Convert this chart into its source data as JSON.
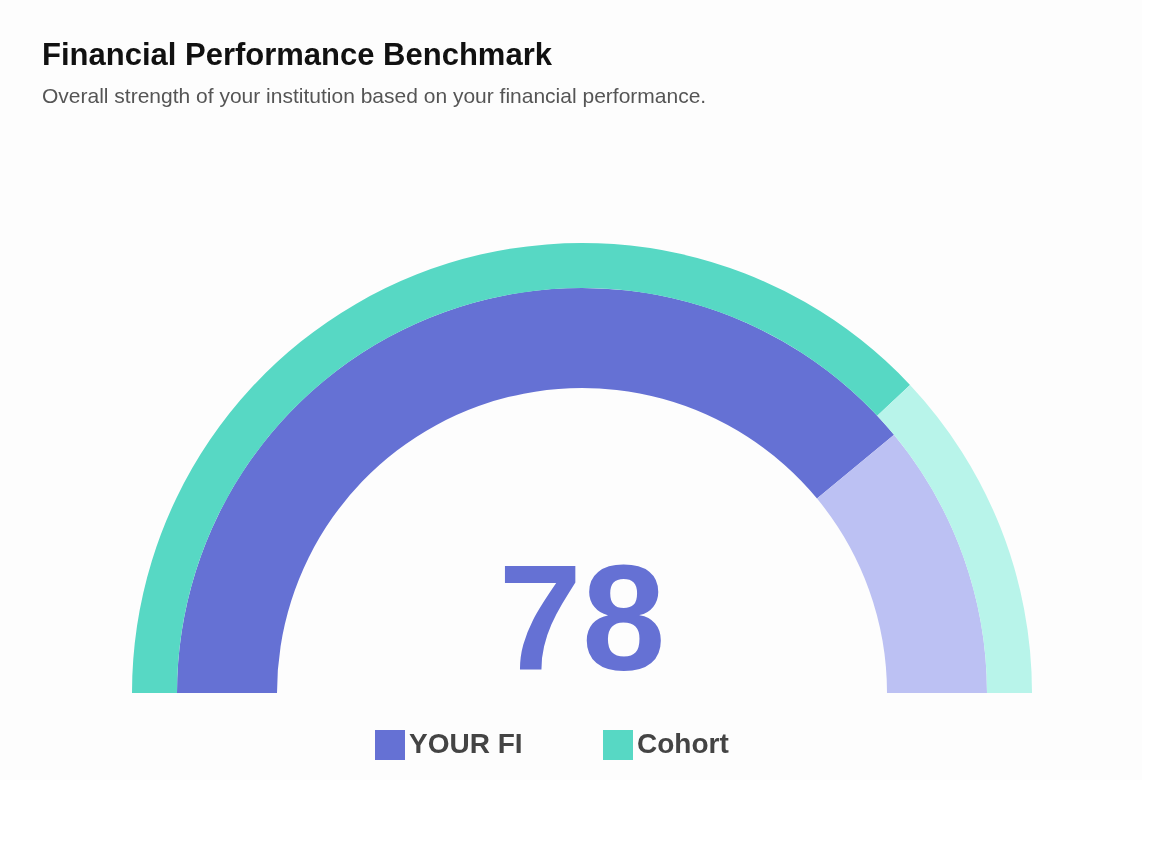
{
  "chart_data": {
    "type": "donut",
    "title": "Financial Performance Benchmark",
    "subtitle": "Overall strength of your institution based on your financial performance.",
    "categories": [
      null,
      null
    ],
    "series": [
      {
        "name": "YOUR FI",
        "values": [
          78,
          22
        ],
        "colors": [
          "#6571d4",
          "#bcc1f3"
        ],
        "value_labels": [
          "78",
          null
        ]
      },
      {
        "name": "Cohort",
        "values": [
          76,
          24
        ],
        "colors": [
          "#57d8c4",
          "#b8f4ea"
        ]
      }
    ],
    "legend": "bottom"
  }
}
